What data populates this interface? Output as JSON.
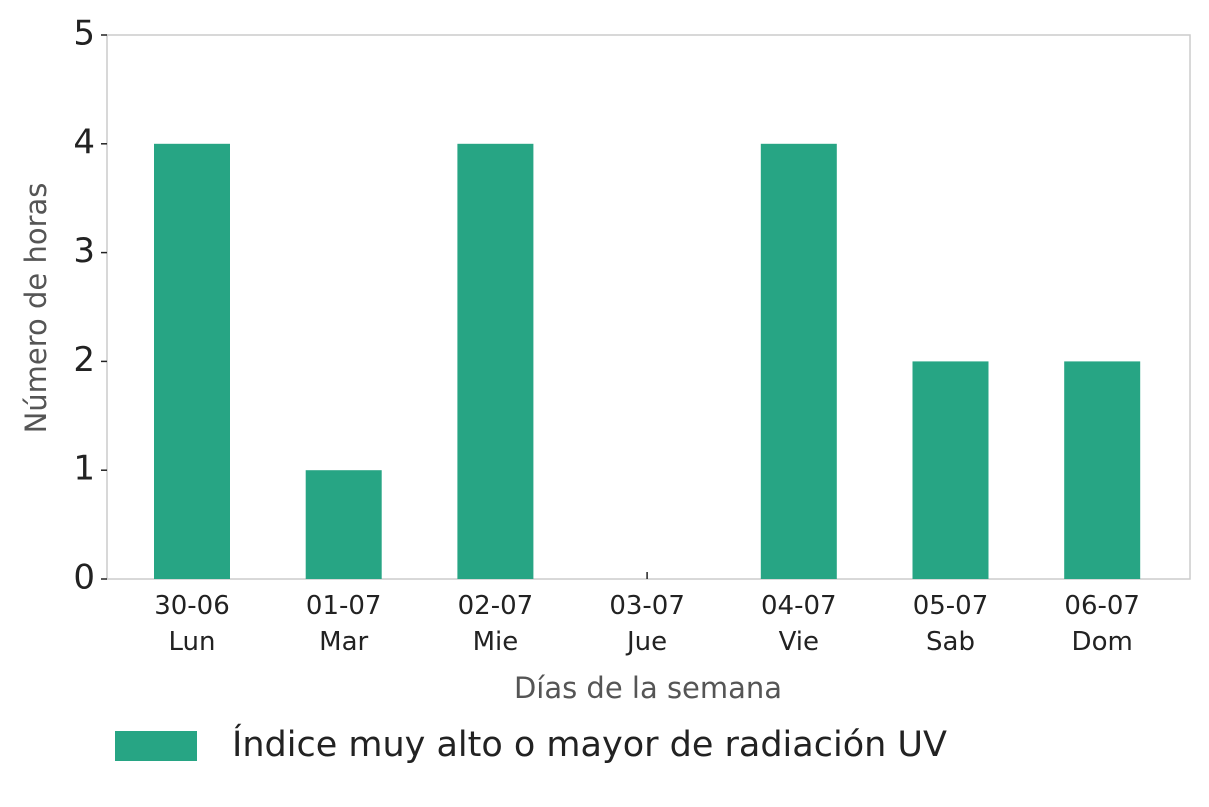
{
  "chart_data": {
    "type": "bar",
    "categories": [
      "30-06\nLun",
      "01-07\nMar",
      "02-07\nMie",
      "03-07\nJue",
      "04-07\nVie",
      "05-07\nSab",
      "06-07\nDom"
    ],
    "series": [
      {
        "name": "Índice muy alto o mayor de radiación UV",
        "color": "#27a584",
        "values": [
          4,
          1,
          4,
          0,
          4,
          2,
          2
        ]
      }
    ],
    "x_label": "Días de la semana",
    "y_label": "Número de horas",
    "ylim": [
      0,
      5
    ],
    "yticks": [
      0,
      1,
      2,
      3,
      4,
      5
    ],
    "grid": false,
    "legend": "bottom"
  }
}
